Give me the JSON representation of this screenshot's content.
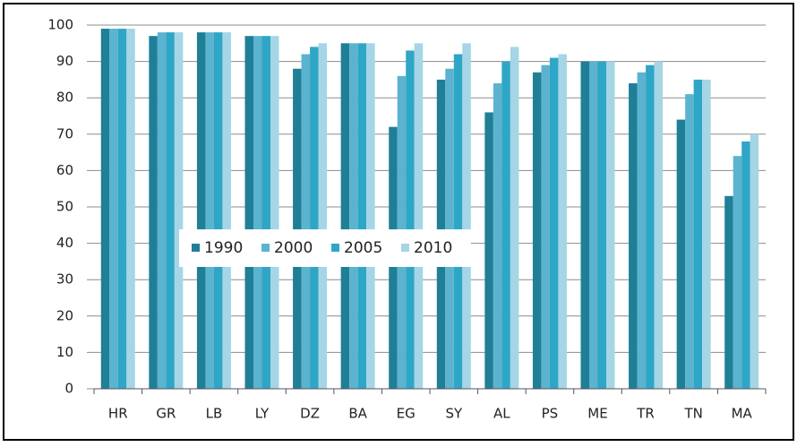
{
  "chart_data": {
    "type": "bar",
    "categories": [
      "HR",
      "GR",
      "LB",
      "LY",
      "DZ",
      "BA",
      "EG",
      "SY",
      "AL",
      "PS",
      "ME",
      "TR",
      "TN",
      "MA"
    ],
    "series": [
      {
        "name": "1990",
        "color": "#1f7f96",
        "values": [
          99,
          97,
          98,
          97,
          88,
          95,
          72,
          85,
          76,
          87,
          90,
          84,
          74,
          53
        ]
      },
      {
        "name": "2000",
        "color": "#5bb3d0",
        "values": [
          99,
          98,
          98,
          97,
          92,
          95,
          86,
          88,
          84,
          89,
          90,
          87,
          81,
          64
        ]
      },
      {
        "name": "2005",
        "color": "#2ea6c6",
        "values": [
          99,
          98,
          98,
          97,
          94,
          95,
          93,
          92,
          90,
          91,
          90,
          89,
          85,
          68
        ]
      },
      {
        "name": "2010",
        "color": "#a6d5e6",
        "values": [
          99,
          98,
          98,
          97,
          95,
          95,
          95,
          95,
          94,
          92,
          90,
          90,
          85,
          70
        ]
      }
    ],
    "ylim": [
      0,
      100
    ],
    "yticks": [
      0,
      10,
      20,
      30,
      40,
      50,
      60,
      70,
      80,
      90,
      100
    ],
    "grid": true,
    "legend": "center"
  }
}
